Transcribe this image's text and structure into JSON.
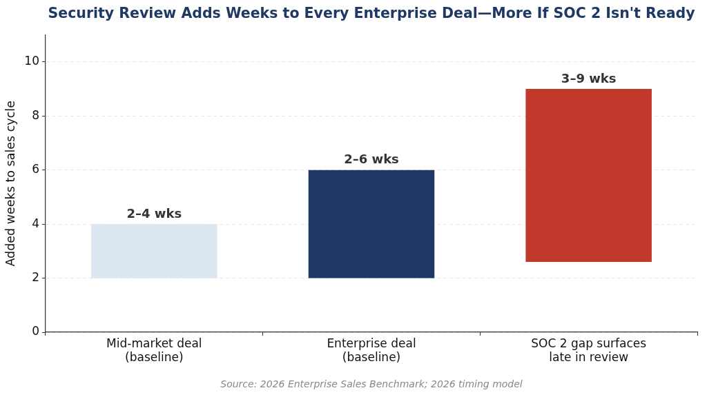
{
  "chart_data": {
    "type": "bar",
    "title": "Security Review Adds Weeks to Every Enterprise Deal—More If SOC 2 Isn't Ready",
    "ylabel": "Added weeks to sales cycle",
    "categories": [
      "Mid-market deal\n(baseline)",
      "Enterprise deal\n(baseline)",
      "SOC 2 gap surfaces\nlate in review"
    ],
    "base": [
      2,
      2,
      2.6
    ],
    "values": [
      2,
      4,
      6.4
    ],
    "colors": [
      "#dce6f0",
      "#1f3864",
      "#c0392b"
    ],
    "value_labels": [
      "2–4 wks",
      "2–6 wks",
      "3–9 wks"
    ],
    "ylim": [
      0,
      11
    ],
    "yticks": [
      0,
      2,
      4,
      6,
      8,
      10
    ],
    "grid": "y",
    "annotations": [
      "Source: 2026 Enterprise Sales Benchmark; 2026 timing model"
    ]
  }
}
